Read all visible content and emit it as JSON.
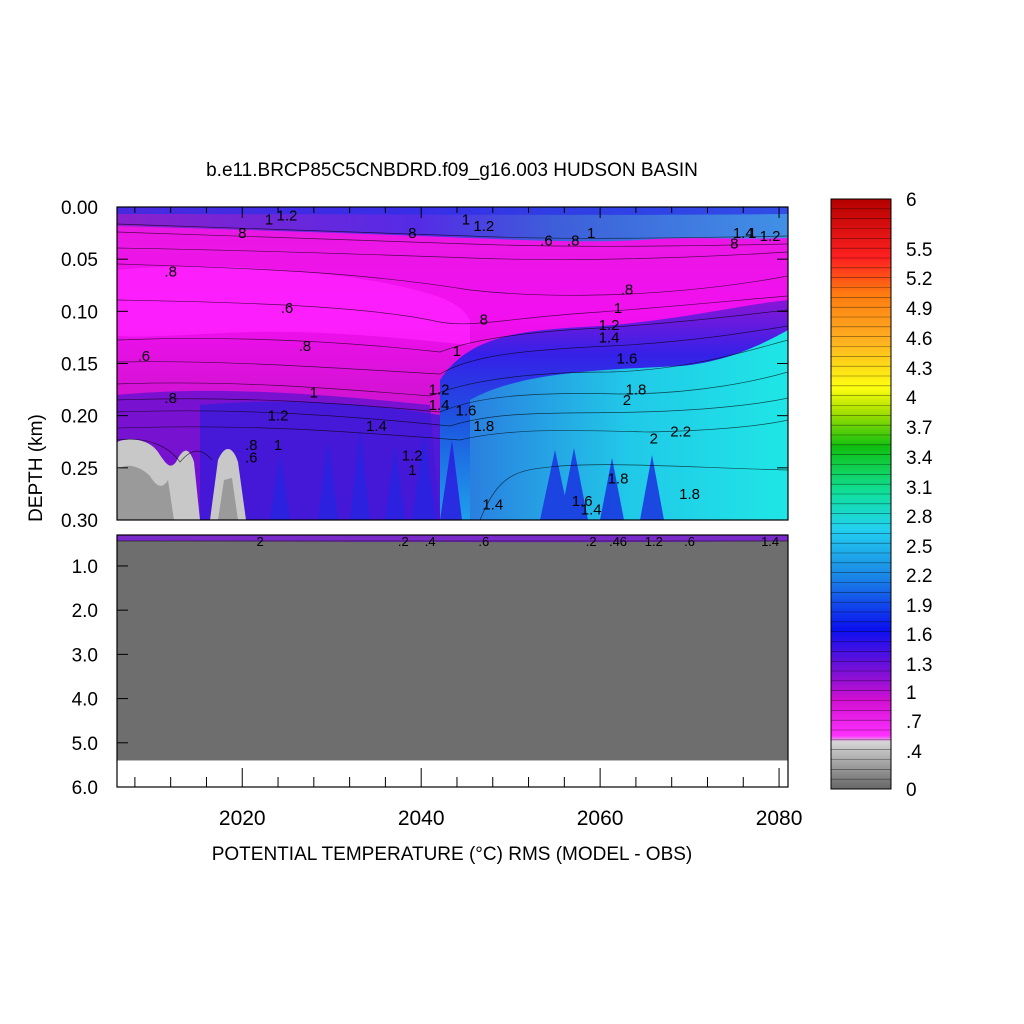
{
  "chart_data": {
    "type": "heatmap",
    "title": "b.e11.BRCP85C5CNBDRD.f09_g16.003 HUDSON BASIN",
    "xlabel": "POTENTIAL TEMPERATURE (°C) RMS (MODEL - OBS)",
    "ylabel": "DEPTH (km)",
    "xlim": [
      2006,
      2081
    ],
    "x_ticks": [
      "2020",
      "2040",
      "2060",
      "2080"
    ],
    "x_tick_values": [
      2020,
      2040,
      2060,
      2080
    ],
    "upper_panel": {
      "ylim": [
        0.0,
        0.3
      ],
      "y_ticks": [
        "0.00",
        "0.05",
        "0.10",
        "0.15",
        "0.20",
        "0.25",
        "0.30"
      ],
      "y_tick_values": [
        0.0,
        0.05,
        0.1,
        0.15,
        0.2,
        0.25,
        0.3
      ]
    },
    "lower_panel": {
      "ylim": [
        0.3,
        6.0
      ],
      "y_ticks": [
        "1.0",
        "2.0",
        "3.0",
        "4.0",
        "5.0",
        "6.0"
      ],
      "y_tick_values": [
        1.0,
        2.0,
        3.0,
        4.0,
        5.0,
        6.0
      ],
      "bottom_depth": 5.4
    },
    "colorbar": {
      "min": 0,
      "max": 6,
      "labels": [
        "6",
        "5.5",
        "5.2",
        "4.9",
        "4.6",
        "4.3",
        "4",
        "3.7",
        "3.4",
        "3.1",
        "2.8",
        "2.5",
        "2.2",
        "1.9",
        "1.6",
        "1.3",
        "1",
        ".7",
        ".4",
        "0"
      ],
      "label_values": [
        6,
        5.5,
        5.2,
        4.9,
        4.6,
        4.3,
        4.0,
        3.7,
        3.4,
        3.1,
        2.8,
        2.5,
        2.2,
        1.9,
        1.6,
        1.3,
        1.0,
        0.7,
        0.4,
        0
      ]
    },
    "field_description": {
      "surface_layer": [
        0.0,
        0.03
      ],
      "value_ranges": {
        "0-0.05_km_surface": [
          1.0,
          1.4
        ],
        "0.05-0.15_km_early": [
          0.6,
          0.8
        ],
        "0.15-0.20_km": [
          0.8,
          1.4
        ],
        "0.20-0.30_km_after_2045": [
          1.6,
          2.4
        ],
        "0.23-0.30_km_2006-2017": [
          0.0,
          0.4
        ]
      }
    },
    "contour_labels": [
      {
        "x": 2023,
        "y": 0.012,
        "text": "1"
      },
      {
        "x": 2025,
        "y": 0.008,
        "text": "1.2"
      },
      {
        "x": 2020,
        "y": 0.025,
        "text": "8"
      },
      {
        "x": 2045,
        "y": 0.012,
        "text": "1"
      },
      {
        "x": 2047,
        "y": 0.018,
        "text": "1.2"
      },
      {
        "x": 2039,
        "y": 0.025,
        "text": "8"
      },
      {
        "x": 2054,
        "y": 0.032,
        "text": ".6"
      },
      {
        "x": 2057,
        "y": 0.032,
        "text": ".8"
      },
      {
        "x": 2059,
        "y": 0.025,
        "text": "1"
      },
      {
        "x": 2076,
        "y": 0.025,
        "text": "1.4"
      },
      {
        "x": 2075,
        "y": 0.035,
        "text": "8"
      },
      {
        "x": 2077,
        "y": 0.025,
        "text": "1"
      },
      {
        "x": 2079,
        "y": 0.028,
        "text": "1.2"
      },
      {
        "x": 2012,
        "y": 0.062,
        "text": ".8"
      },
      {
        "x": 2025,
        "y": 0.097,
        "text": ".6"
      },
      {
        "x": 2063,
        "y": 0.079,
        "text": ".8"
      },
      {
        "x": 2062,
        "y": 0.097,
        "text": "1"
      },
      {
        "x": 2047,
        "y": 0.108,
        "text": "8"
      },
      {
        "x": 2061,
        "y": 0.113,
        "text": "1.2"
      },
      {
        "x": 2061,
        "y": 0.125,
        "text": "1.4"
      },
      {
        "x": 2009,
        "y": 0.143,
        "text": ".6"
      },
      {
        "x": 2027,
        "y": 0.133,
        "text": ".8"
      },
      {
        "x": 2044,
        "y": 0.138,
        "text": "1"
      },
      {
        "x": 2063,
        "y": 0.145,
        "text": "1.6"
      },
      {
        "x": 2012,
        "y": 0.183,
        "text": ".8"
      },
      {
        "x": 2028,
        "y": 0.178,
        "text": "1"
      },
      {
        "x": 2042,
        "y": 0.175,
        "text": "1.2"
      },
      {
        "x": 2042,
        "y": 0.19,
        "text": "1.4"
      },
      {
        "x": 2045,
        "y": 0.195,
        "text": "1.6"
      },
      {
        "x": 2047,
        "y": 0.21,
        "text": "1.8"
      },
      {
        "x": 2064,
        "y": 0.175,
        "text": "1.8"
      },
      {
        "x": 2063,
        "y": 0.185,
        "text": "2"
      },
      {
        "x": 2024,
        "y": 0.2,
        "text": "1.2"
      },
      {
        "x": 2024,
        "y": 0.228,
        "text": "1"
      },
      {
        "x": 2035,
        "y": 0.21,
        "text": "1.4"
      },
      {
        "x": 2039,
        "y": 0.238,
        "text": "1.2"
      },
      {
        "x": 2039,
        "y": 0.252,
        "text": "1"
      },
      {
        "x": 2021,
        "y": 0.228,
        "text": ".8"
      },
      {
        "x": 2021,
        "y": 0.24,
        "text": ".6"
      },
      {
        "x": 2066,
        "y": 0.222,
        "text": "2"
      },
      {
        "x": 2069,
        "y": 0.215,
        "text": "2.2"
      },
      {
        "x": 2062,
        "y": 0.26,
        "text": "1.8"
      },
      {
        "x": 2070,
        "y": 0.275,
        "text": "1.8"
      },
      {
        "x": 2048,
        "y": 0.285,
        "text": "1.4"
      },
      {
        "x": 2058,
        "y": 0.282,
        "text": "1.6"
      },
      {
        "x": 2059,
        "y": 0.29,
        "text": "1.4"
      }
    ],
    "lower_contour_labels": [
      "2",
      ".2",
      ".4",
      ".6",
      ".2",
      ".46",
      "1.2",
      ".6",
      "1.4"
    ]
  }
}
